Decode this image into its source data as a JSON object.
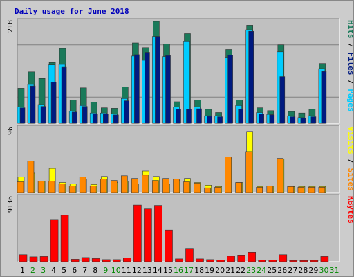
{
  "chart_data": {
    "type": "bar",
    "title": "Daily usage for June 2018",
    "categories": [
      "1",
      "2",
      "3",
      "4",
      "5",
      "6",
      "7",
      "8",
      "9",
      "10",
      "11",
      "12",
      "13",
      "14",
      "15",
      "16",
      "17",
      "18",
      "19",
      "20",
      "21",
      "22",
      "23",
      "24",
      "25",
      "26",
      "27",
      "28",
      "29",
      "30",
      "31"
    ],
    "weekend_days": [
      "2",
      "3",
      "9",
      "10",
      "16",
      "17",
      "23",
      "24",
      "30",
      "31"
    ],
    "colors": {
      "title": "#0000bb",
      "weekday": "#000000",
      "weekend": "#008800",
      "hits": "#1a7a5a",
      "files": "#00ccff",
      "pages": "#001a80",
      "visits": "#ffff00",
      "sites": "#ff8800",
      "kbytes": "#ff0000"
    },
    "panels": [
      {
        "name": "usage",
        "max_label": "218",
        "ymax": 218,
        "right_labels": [
          {
            "text": "Pages",
            "color": "#00ccff"
          },
          {
            "text": " / ",
            "color": "#000000"
          },
          {
            "text": "Files",
            "color": "#001a80"
          },
          {
            "text": " / ",
            "color": "#000000"
          },
          {
            "text": "Hits",
            "color": "#1a7a5a"
          }
        ],
        "series": [
          {
            "name": "Hits",
            "color": "#1a7a5a",
            "values": [
              75,
              110,
              96,
              130,
              160,
              50,
              76,
              45,
              33,
              32,
              78,
              172,
              162,
              218,
              170,
              46,
              192,
              50,
              30,
              23,
              158,
              50,
              210,
              33,
              27,
              168,
              25,
              22,
              30,
              128,
              0
            ]
          },
          {
            "name": "Files",
            "color": "#00ccff",
            "values": [
              35,
              83,
              40,
              125,
              126,
              26,
              38,
              22,
              22,
              20,
              53,
              144,
              135,
              186,
              143,
              35,
              176,
              35,
              16,
              16,
              140,
              38,
              200,
              23,
              19,
              153,
              16,
              12,
              16,
              117,
              0
            ]
          },
          {
            "name": "Pages",
            "color": "#001a80",
            "values": [
              33,
              80,
              36,
              88,
              120,
              24,
              36,
              20,
              20,
              18,
              48,
              147,
              152,
              186,
              145,
              30,
              30,
              31,
              15,
              14,
              146,
              30,
              197,
              20,
              18,
              100,
              14,
              11,
              14,
              111,
              0
            ]
          }
        ]
      },
      {
        "name": "visits",
        "max_label": "96",
        "ymax": 96,
        "right_labels": [
          {
            "text": "Sites",
            "color": "#ff8800"
          },
          {
            "text": " / ",
            "color": "#000000"
          },
          {
            "text": "Visits",
            "color": "#ffff00"
          }
        ],
        "series": [
          {
            "name": "Visits",
            "color": "#ffff00",
            "values": [
              23,
              29,
              17,
              36,
              15,
              13,
              20,
              12,
              24,
              15,
              17,
              13,
              32,
              24,
              12,
              18,
              21,
              15,
              11,
              9,
              51,
              15,
              91,
              9,
              10,
              50,
              9,
              9,
              9,
              9,
              0
            ]
          },
          {
            "name": "Sites",
            "color": "#ff8800",
            "values": [
              16,
              47,
              17,
              17,
              13,
              10,
              23,
              10,
              20,
              18,
              25,
              21,
              26,
              18,
              21,
              20,
              16,
              14,
              7,
              8,
              53,
              15,
              61,
              8,
              10,
              51,
              9,
              8,
              8,
              8,
              0
            ]
          }
        ]
      },
      {
        "name": "kbytes",
        "max_label": "9136",
        "ymax": 9136,
        "right_labels": [
          {
            "text": "KBytes",
            "color": "#ff0000"
          }
        ],
        "series": [
          {
            "name": "KBytes",
            "color": "#ff0000",
            "values": [
              1000,
              700,
              750,
              6000,
              6600,
              350,
              600,
              450,
              300,
              300,
              550,
              8050,
              7500,
              8000,
              4500,
              400,
              1900,
              400,
              300,
              250,
              800,
              950,
              1350,
              250,
              250,
              1000,
              180,
              180,
              200,
              750,
              0
            ]
          }
        ]
      }
    ]
  }
}
